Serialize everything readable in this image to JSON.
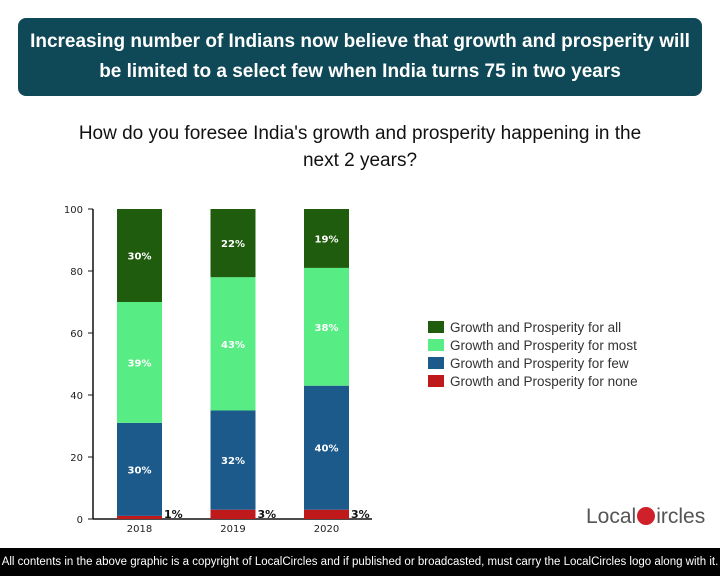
{
  "header": {
    "title": "Increasing number of Indians now believe that growth and prosperity will be limited to a select few when India turns 75 in two years"
  },
  "chart_data": {
    "type": "bar",
    "stacked": true,
    "title": "How do you foresee India's growth and prosperity happening in the next 2 years?",
    "categories": [
      "2018",
      "2019",
      "2020"
    ],
    "ylim": [
      0,
      100
    ],
    "yticks": [
      0,
      20,
      40,
      60,
      80,
      100
    ],
    "legend_position": "right",
    "series": [
      {
        "name": "Growth and Prosperity for none",
        "values": [
          1,
          3,
          3
        ],
        "labels": [
          "1%",
          "3%",
          "3%"
        ],
        "color": "#c0191c"
      },
      {
        "name": "Growth and Prosperity for few",
        "values": [
          30,
          32,
          40
        ],
        "labels": [
          "30%",
          "32%",
          "40%"
        ],
        "color": "#1d5a8c"
      },
      {
        "name": "Growth and Prosperity for most",
        "values": [
          39,
          43,
          38
        ],
        "labels": [
          "39%",
          "43%",
          "38%"
        ],
        "color": "#58ec84"
      },
      {
        "name": "Growth and Prosperity for all",
        "values": [
          30,
          22,
          19
        ],
        "labels": [
          "30%",
          "22%",
          "19%"
        ],
        "color": "#1f5c0d"
      }
    ]
  },
  "legend_order": [
    3,
    2,
    1,
    0
  ],
  "logo": {
    "text_left": "Local",
    "text_right": "ircles"
  },
  "footer": {
    "text": "All contents in the above graphic is a copyright of LocalCircles and if published or broadcasted, must carry the LocalCircles logo along with it."
  }
}
